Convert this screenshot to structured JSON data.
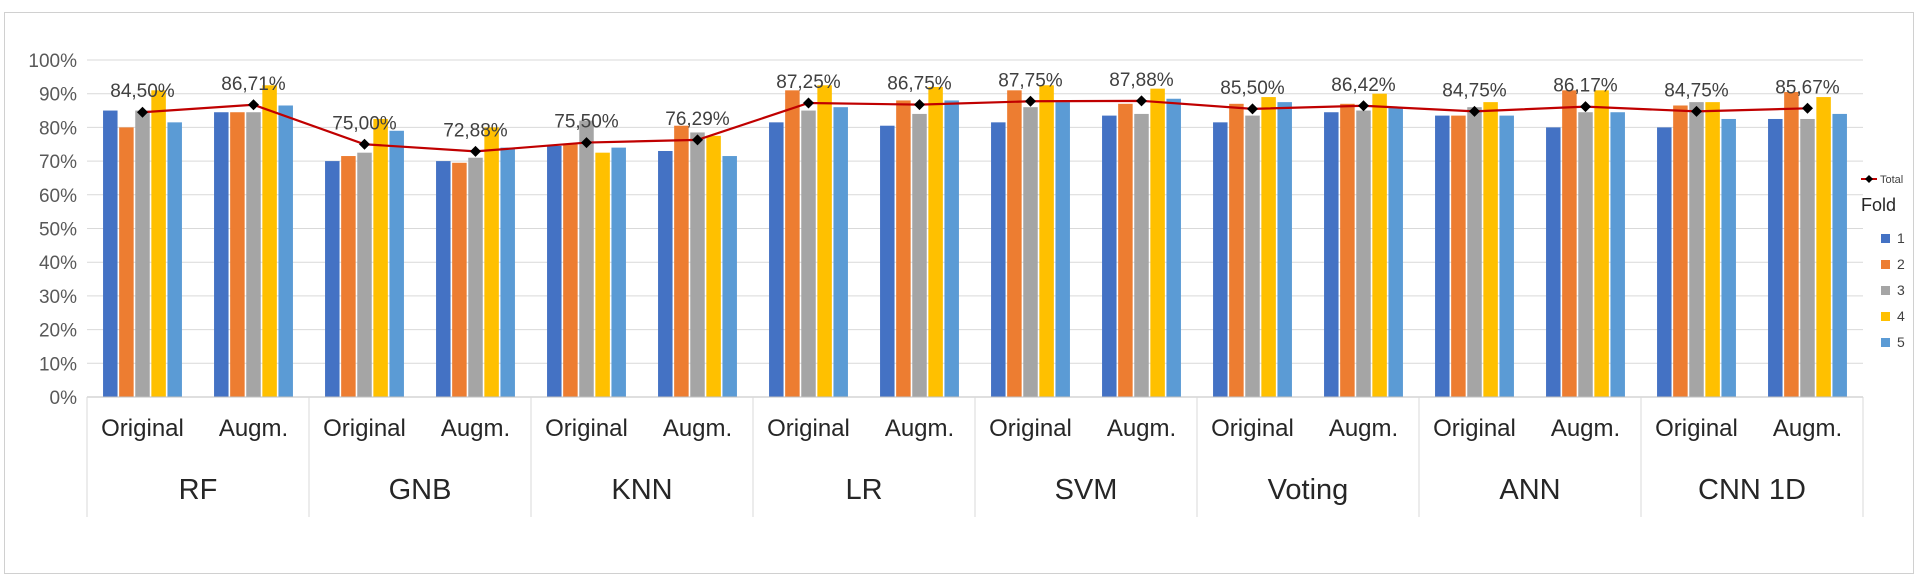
{
  "chart_data": {
    "type": "bar",
    "title": "",
    "xlabel": "",
    "ylabel": "",
    "ylim": [
      0,
      100
    ],
    "yticks": [
      "0%",
      "10%",
      "20%",
      "30%",
      "40%",
      "50%",
      "60%",
      "70%",
      "80%",
      "90%",
      "100%"
    ],
    "grid": true,
    "legend_position": "right",
    "legend_title": "Fold",
    "groups": [
      "RF",
      "GNB",
      "KNN",
      "LR",
      "SVM",
      "Voting",
      "ANN",
      "CNN 1D"
    ],
    "subcategories": [
      "Original",
      "Augm."
    ],
    "series": [
      {
        "name": "1",
        "color": "#4472C4",
        "values": [
          85,
          84.5,
          70,
          70,
          74.5,
          73,
          81.5,
          80.5,
          81.5,
          83.5,
          81.5,
          84.5,
          83.5,
          80,
          80,
          82.5
        ]
      },
      {
        "name": "2",
        "color": "#ED7D31",
        "values": [
          80,
          84.5,
          71.5,
          69.5,
          75,
          80.5,
          91,
          88,
          91,
          87,
          87,
          87,
          83.5,
          91,
          86.5,
          90.5
        ]
      },
      {
        "name": "3",
        "color": "#A5A5A5",
        "values": [
          85,
          84.5,
          72.5,
          71,
          82,
          78.5,
          85,
          84,
          86,
          84,
          83.5,
          85,
          86,
          84.5,
          87.5,
          82.5
        ]
      },
      {
        "name": "4",
        "color": "#FFC000",
        "values": [
          91,
          92.5,
          82.5,
          80,
          72.5,
          77.5,
          92.5,
          92,
          92.5,
          91.5,
          89,
          90,
          87.5,
          91,
          87.5,
          89
        ]
      },
      {
        "name": "5",
        "color": "#5B9BD5",
        "values": [
          81.5,
          86.5,
          79,
          74,
          74,
          71.5,
          86,
          88,
          87.5,
          88.5,
          87.5,
          86,
          83.5,
          84.5,
          82.5,
          84
        ]
      }
    ],
    "total": {
      "name": "Total",
      "color": "#C00000",
      "values": [
        84.5,
        86.71,
        75.0,
        72.88,
        75.5,
        76.29,
        87.25,
        86.75,
        87.75,
        87.88,
        85.5,
        86.42,
        84.75,
        86.17,
        84.75,
        85.67
      ],
      "labels": [
        "84,50%",
        "86,71%",
        "75,00%",
        "72,88%",
        "75,50%",
        "76,29%",
        "87,25%",
        "86,75%",
        "87,75%",
        "87,88%",
        "85,50%",
        "86,42%",
        "84,75%",
        "86,17%",
        "84,75%",
        "85,67%"
      ]
    }
  }
}
